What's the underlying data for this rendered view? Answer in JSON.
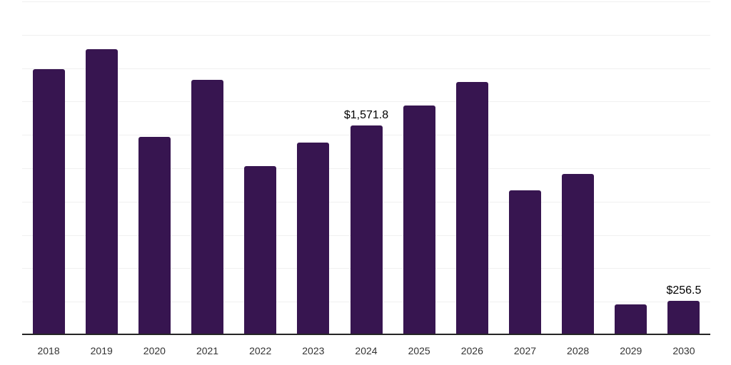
{
  "chart_data": {
    "type": "bar",
    "title": "",
    "xlabel": "",
    "ylabel": "",
    "categories": [
      "2018",
      "2019",
      "2020",
      "2021",
      "2022",
      "2023",
      "2024",
      "2025",
      "2026",
      "2027",
      "2028",
      "2029",
      "2030"
    ],
    "values": [
      1990,
      2140,
      1485,
      1915,
      1265,
      1440,
      1571.8,
      1720,
      1895,
      1085,
      1205,
      230,
      256.5
    ],
    "data_labels": {
      "2024": "$1,571.8",
      "2030": "$256.5"
    },
    "ylim": [
      0,
      2500
    ],
    "gridline_step": 250,
    "grid": true,
    "y_tick_labels_visible": false,
    "legend": "none"
  },
  "colors": {
    "bar": "#371550",
    "gridline": "#f0f0f0",
    "axis_line": "#252525",
    "x_tick_label": "#333333",
    "value_label": "#000000",
    "background": "#ffffff"
  }
}
